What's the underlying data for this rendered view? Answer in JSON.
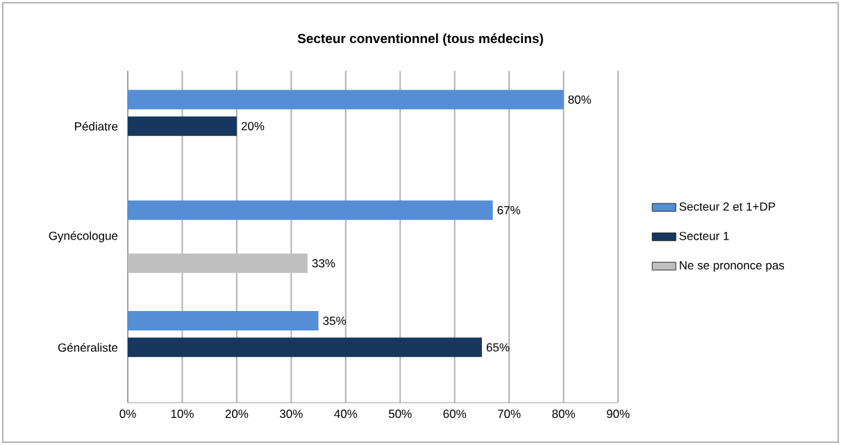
{
  "chart_data": {
    "type": "bar",
    "orientation": "horizontal",
    "title": "Secteur conventionnel (tous médecins)",
    "categories": [
      "Pédiatre",
      "Gynécologue",
      "Généraliste"
    ],
    "series": [
      {
        "name": "Secteur 2 et 1+DP",
        "color": "#558ed5",
        "values": [
          80,
          67,
          35
        ],
        "value_labels": [
          "80%",
          "67%",
          "35%"
        ]
      },
      {
        "name": "Secteur 1",
        "color": "#17375e",
        "values": [
          20,
          null,
          65
        ],
        "value_labels": [
          "20%",
          null,
          "65%"
        ]
      },
      {
        "name": "Ne se prononce pas",
        "color": "#bfbfbf",
        "values": [
          null,
          33,
          null
        ],
        "value_labels": [
          null,
          "33%",
          null
        ]
      }
    ],
    "xlim": [
      0,
      90
    ],
    "xticks": [
      {
        "value": 0,
        "label": "0%"
      },
      {
        "value": 10,
        "label": "10%"
      },
      {
        "value": 20,
        "label": "20%"
      },
      {
        "value": 30,
        "label": "30%"
      },
      {
        "value": 40,
        "label": "40%"
      },
      {
        "value": 50,
        "label": "50%"
      },
      {
        "value": 60,
        "label": "60%"
      },
      {
        "value": 70,
        "label": "70%"
      },
      {
        "value": 80,
        "label": "80%"
      },
      {
        "value": 90,
        "label": "90%"
      }
    ],
    "grid": "x",
    "legend": "right"
  }
}
